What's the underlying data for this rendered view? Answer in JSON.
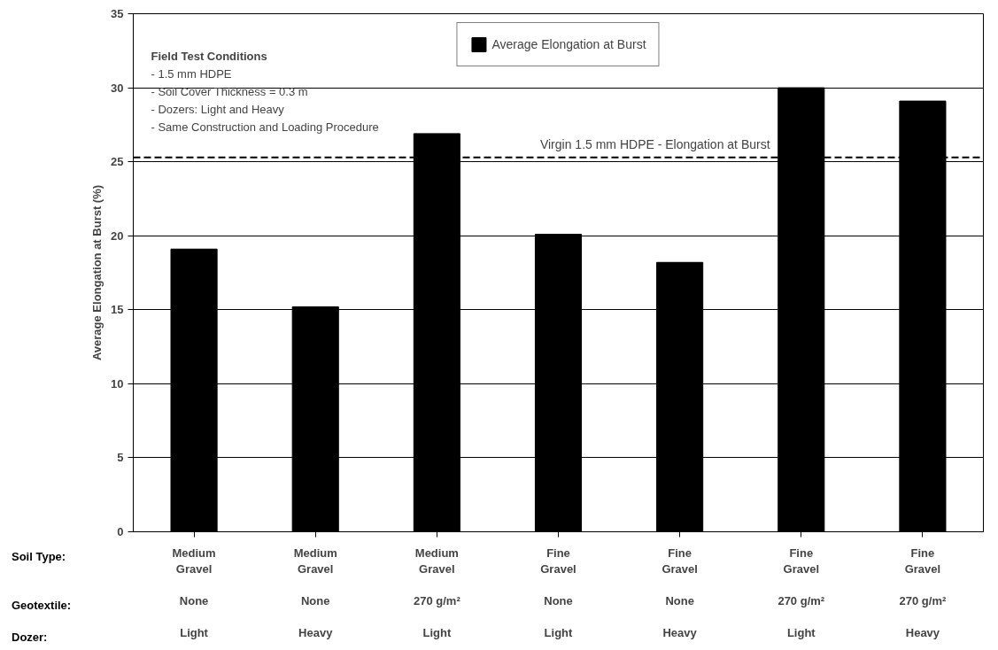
{
  "chart_data": {
    "type": "bar",
    "categories": [
      "Medium\nGravel\n\nNone\n\nLight",
      "Medium\nGravel\n\nNone\n\nHeavy",
      "Medium\nGravel\n\n270 g/m²\n\nLight",
      "Fine\nGravel\n\nNone\n\nLight",
      "Fine\nGravel\n\nNone\n\nHeavy",
      "Fine\nGravel\n\n270 g/m²\n\nLight",
      "Fine\nGravel\n\n270 g/m²\n\nHeavy"
    ],
    "series": [
      {
        "name": "Average Elongation at Burst",
        "color": "#000000",
        "values": [
          19.1,
          15.2,
          26.9,
          20.1,
          18.2,
          30.0,
          29.1
        ]
      }
    ],
    "ylabel": "Average Elongation at Burst (%)",
    "ylim": [
      0,
      35
    ],
    "yticks": [
      0,
      5,
      10,
      15,
      20,
      25,
      30,
      35
    ],
    "grid": "y",
    "legend": "top",
    "ref_lines": [
      {
        "axis": "y",
        "value": 25.3,
        "label": "Virgin 1.5 mm HDPE - Elongation at Burst",
        "line_style": "dashed",
        "color": "#000000"
      }
    ],
    "annotations": [
      "Field Test Conditions",
      "   - 1.5 mm HDPE",
      "   - Soil Cover Thickness = 0.3 m",
      "   - Dozers:  Light and Heavy",
      "   - Same Construction and Loading Procedure",
      "Soil Type:",
      "Geotextile:",
      "Dozer:"
    ]
  }
}
